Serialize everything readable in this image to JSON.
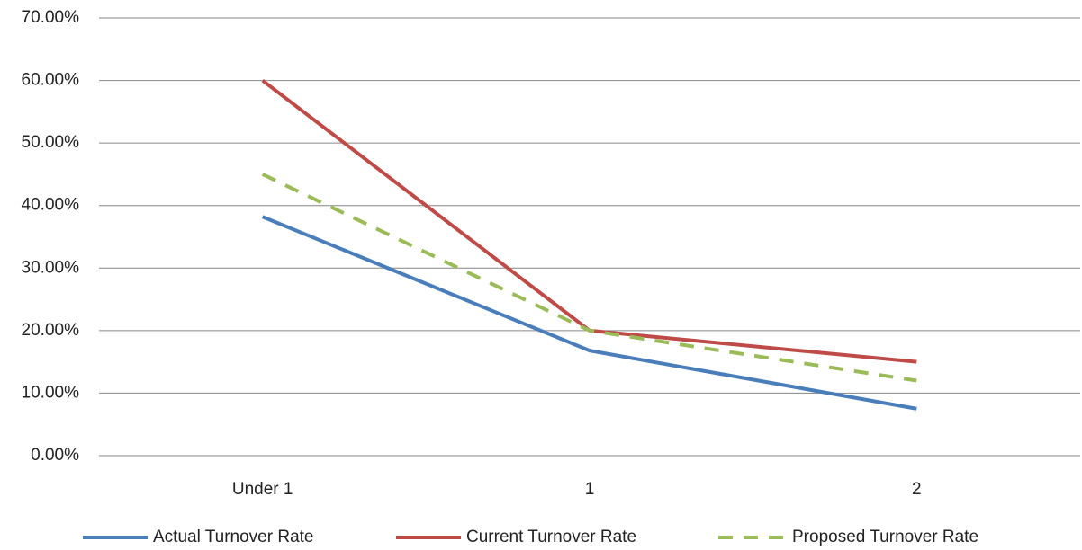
{
  "chart_data": {
    "type": "line",
    "categories": [
      "Under 1",
      "1",
      "2"
    ],
    "series": [
      {
        "name": "Actual Turnover Rate",
        "color": "#4a7ebb",
        "dashed": false,
        "values": [
          38.2,
          16.8,
          7.5
        ]
      },
      {
        "name": "Current Turnover Rate",
        "color": "#be4b48",
        "dashed": false,
        "values": [
          60,
          20,
          15
        ]
      },
      {
        "name": "Proposed Turnover Rate",
        "color": "#9bbb59",
        "dashed": true,
        "values": [
          45,
          20,
          12
        ]
      }
    ],
    "ylim": [
      0,
      70
    ],
    "yticks": [
      {
        "value": 0,
        "label": "0.00%"
      },
      {
        "value": 10,
        "label": "10.00%"
      },
      {
        "value": 20,
        "label": "20.00%"
      },
      {
        "value": 30,
        "label": "30.00%"
      },
      {
        "value": 40,
        "label": "40.00%"
      },
      {
        "value": 50,
        "label": "50.00%"
      },
      {
        "value": 60,
        "label": "60.00%"
      },
      {
        "value": 70,
        "label": "70.00%"
      }
    ],
    "grid": true,
    "legend": "bottom"
  }
}
